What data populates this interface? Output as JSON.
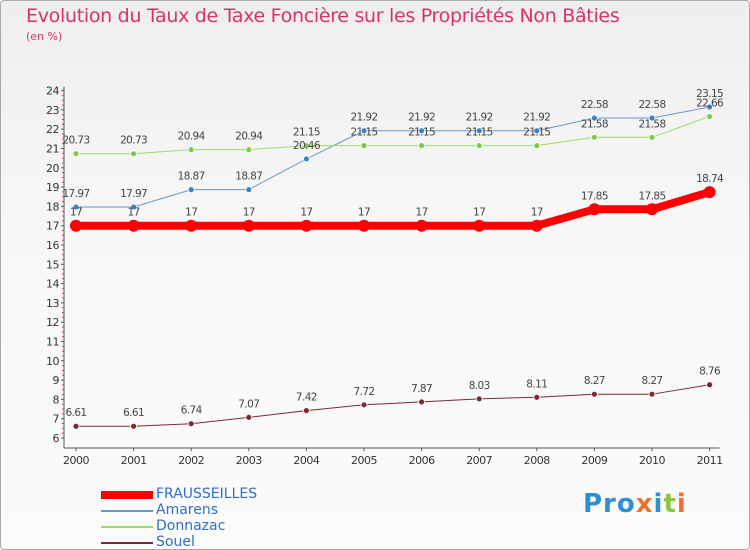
{
  "title": "Evolution du Taux de Taxe Foncière sur les Propriétés Non Bâties",
  "subtitle": "(en %)",
  "logo": {
    "text": "Proxiti",
    "colors": [
      "#2e8fd6",
      "#e8742e",
      "#8cc63f"
    ]
  },
  "chart_data": {
    "type": "line",
    "categories": [
      "2000",
      "2001",
      "2002",
      "2003",
      "2004",
      "2005",
      "2006",
      "2007",
      "2008",
      "2009",
      "2010",
      "2011"
    ],
    "ylim": [
      6,
      24
    ],
    "yticks": [
      6,
      7,
      8,
      9,
      10,
      11,
      12,
      13,
      14,
      15,
      16,
      17,
      18,
      19,
      20,
      21,
      22,
      23,
      24
    ],
    "grid": false,
    "legend_position": "bottom-left",
    "series": [
      {
        "name": "FRAUSSEILLES",
        "color": "#ff0000",
        "width": 8,
        "values": [
          17,
          17,
          17,
          17,
          17,
          17,
          17,
          17,
          17,
          17.85,
          17.85,
          18.74
        ],
        "labels": [
          "17",
          "17",
          "17",
          "17",
          "17",
          "17",
          "17",
          "17",
          "17",
          "17.85",
          "17.85",
          "18.74"
        ]
      },
      {
        "name": "Amarens",
        "color": "#6699cc",
        "marker": "#3b83c4",
        "width": 1,
        "values": [
          17.97,
          17.97,
          18.87,
          18.87,
          20.46,
          21.92,
          21.92,
          21.92,
          21.92,
          22.58,
          22.58,
          23.15
        ],
        "labels": [
          "17.97",
          "17.97",
          "18.87",
          "18.87",
          "20.46",
          "21.92",
          "21.92",
          "21.92",
          "21.92",
          "22.58",
          "22.58",
          "23.15"
        ]
      },
      {
        "name": "Donnazac",
        "color": "#99dd66",
        "marker": "#7ec84a",
        "width": 1,
        "values": [
          20.73,
          20.73,
          20.94,
          20.94,
          21.15,
          21.15,
          21.15,
          21.15,
          21.15,
          21.58,
          21.58,
          22.66
        ],
        "labels": [
          "20.73",
          "20.73",
          "20.94",
          "20.94",
          "21.15",
          "21.15",
          "21.15",
          "21.15",
          "21.15",
          "21.58",
          "21.58",
          "22.66"
        ]
      },
      {
        "name": "Souel",
        "color": "#7a2a35",
        "marker": "#7a2a35",
        "width": 1,
        "values": [
          6.61,
          6.61,
          6.74,
          7.07,
          7.42,
          7.72,
          7.87,
          8.03,
          8.11,
          8.27,
          8.27,
          8.76
        ],
        "labels": [
          "6.61",
          "6.61",
          "6.74",
          "7.07",
          "7.42",
          "7.72",
          "7.87",
          "8.03",
          "8.11",
          "8.27",
          "8.27",
          "8.76"
        ]
      }
    ]
  }
}
